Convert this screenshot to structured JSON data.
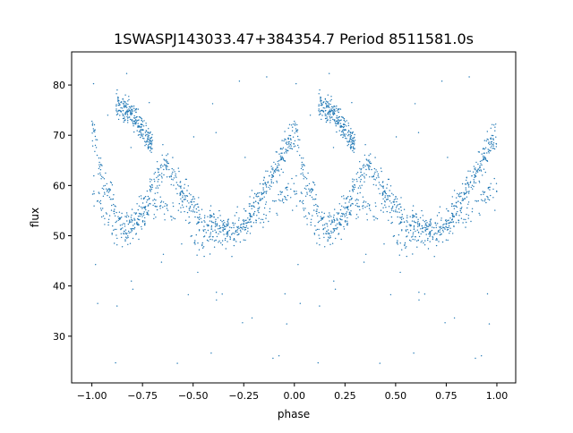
{
  "chart_data": {
    "type": "scatter",
    "title": "1SWASPJ143033.47+384354.7 Period 8511581.0s",
    "xlabel": "phase",
    "ylabel": "flux",
    "xlim": [
      -1.1,
      1.093
    ],
    "ylim": [
      20.7,
      86.6
    ],
    "xticks": [
      -1.0,
      -0.75,
      -0.5,
      -0.25,
      0.0,
      0.25,
      0.5,
      0.75,
      1.0
    ],
    "xtick_labels": [
      "−1.00",
      "−0.75",
      "−0.50",
      "−0.25",
      "0.00",
      "0.25",
      "0.50",
      "0.75",
      "1.00"
    ],
    "yticks": [
      30,
      40,
      50,
      60,
      70,
      80
    ],
    "ytick_labels": [
      "30",
      "40",
      "50",
      "60",
      "70",
      "80"
    ],
    "grid": false,
    "point_color": "#1f77b4",
    "folded": true,
    "note_repeat": "data for phase 0..1 is repeated at phase -1..0",
    "strands": [
      {
        "name": "main",
        "spread": 2.2,
        "points": [
          [
            0.0,
            72
          ],
          [
            0.05,
            62
          ],
          [
            0.1,
            57
          ],
          [
            0.15,
            51
          ],
          [
            0.2,
            52
          ],
          [
            0.25,
            55
          ],
          [
            0.3,
            59
          ],
          [
            0.36,
            65
          ],
          [
            0.42,
            60
          ],
          [
            0.5,
            56
          ],
          [
            0.55,
            52
          ],
          [
            0.6,
            53
          ],
          [
            0.65,
            51
          ],
          [
            0.7,
            51
          ],
          [
            0.75,
            53
          ],
          [
            0.8,
            56
          ],
          [
            0.85,
            60
          ],
          [
            0.9,
            63
          ],
          [
            0.95,
            67
          ],
          [
            1.0,
            70
          ]
        ]
      },
      {
        "name": "upper",
        "spread": 1.8,
        "points": [
          [
            0.12,
            76
          ],
          [
            0.18,
            75
          ],
          [
            0.24,
            72
          ],
          [
            0.3,
            68
          ]
        ]
      },
      {
        "name": "lower",
        "spread": 1.8,
        "points": [
          [
            0.0,
            60
          ],
          [
            0.05,
            55
          ],
          [
            0.1,
            52
          ],
          [
            0.13,
            49
          ],
          [
            0.18,
            50
          ],
          [
            0.3,
            56
          ],
          [
            0.45,
            55
          ],
          [
            0.52,
            48
          ],
          [
            0.6,
            49
          ],
          [
            0.7,
            50
          ],
          [
            0.8,
            53
          ],
          [
            0.9,
            56
          ],
          [
            1.0,
            60
          ]
        ]
      }
    ],
    "outlier_range": [
      24,
      84
    ]
  }
}
